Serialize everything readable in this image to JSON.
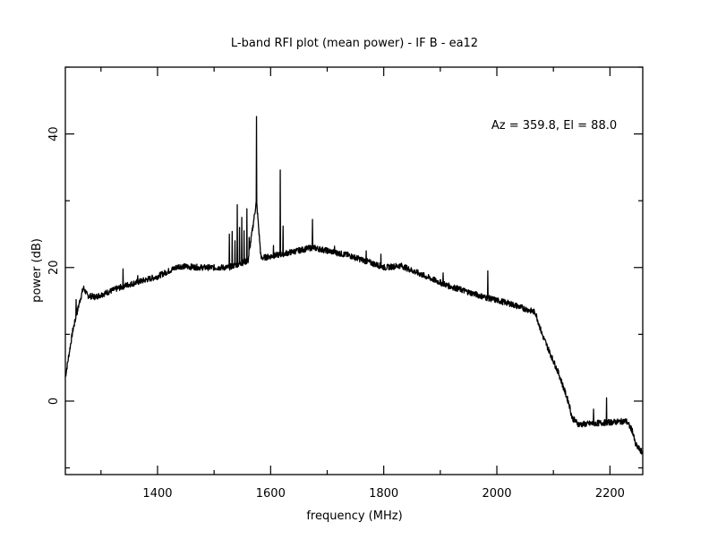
{
  "chart_data": {
    "type": "line",
    "title": "L-band RFI plot (mean power) - IF B - ea12",
    "xlabel": "frequency (MHz)",
    "ylabel": "power (dB)",
    "annotation": "Az = 359.8, El = 88.0",
    "xlim": [
      1237,
      2258
    ],
    "ylim": [
      -11,
      50
    ],
    "x_ticks": [
      1400,
      1600,
      1800,
      2000,
      2200
    ],
    "x_tick_labels": [
      "1400",
      "1600",
      "1800",
      "2000",
      "2200"
    ],
    "x_minor_step": 100,
    "y_ticks": [
      0,
      20,
      40
    ],
    "y_tick_labels": [
      "0",
      "20",
      "40"
    ],
    "y_minor_step": 10,
    "grid": false,
    "line_color": "#000000",
    "series": [
      {
        "name": "mean power",
        "baseline": [
          [
            1237,
            3.6
          ],
          [
            1250,
            10.5
          ],
          [
            1262,
            14.8
          ],
          [
            1269,
            17.0
          ],
          [
            1276,
            15.8
          ],
          [
            1290,
            15.6
          ],
          [
            1343,
            17.3
          ],
          [
            1398,
            18.6
          ],
          [
            1438,
            20.2
          ],
          [
            1480,
            20.0
          ],
          [
            1525,
            20.0
          ],
          [
            1560,
            21.0
          ],
          [
            1575,
            30.0
          ],
          [
            1583,
            21.4
          ],
          [
            1620,
            22.0
          ],
          [
            1674,
            23.0
          ],
          [
            1739,
            21.8
          ],
          [
            1802,
            20.0
          ],
          [
            1830,
            20.3
          ],
          [
            1865,
            19.0
          ],
          [
            1913,
            17.3
          ],
          [
            1981,
            15.5
          ],
          [
            2023,
            14.6
          ],
          [
            2068,
            13.3
          ],
          [
            2080,
            10.0
          ],
          [
            2110,
            4.0
          ],
          [
            2128,
            -0.5
          ],
          [
            2133,
            -2.5
          ],
          [
            2145,
            -3.5
          ],
          [
            2229,
            -3.0
          ],
          [
            2240,
            -4.5
          ],
          [
            2245,
            -6.5
          ],
          [
            2258,
            -7.8
          ]
        ],
        "spikes": [
          [
            1256,
            15.2
          ],
          [
            1339,
            19.8
          ],
          [
            1365,
            18.8
          ],
          [
            1527,
            25.0
          ],
          [
            1532,
            25.4
          ],
          [
            1537,
            24.0
          ],
          [
            1541,
            29.4
          ],
          [
            1545,
            26.0
          ],
          [
            1549,
            27.5
          ],
          [
            1553,
            25.5
          ],
          [
            1558,
            28.8
          ],
          [
            1562,
            24.5
          ],
          [
            1575,
            42.6
          ],
          [
            1605,
            23.3
          ],
          [
            1617,
            34.6
          ],
          [
            1622,
            26.2
          ],
          [
            1674,
            27.2
          ],
          [
            1713,
            23.2
          ],
          [
            1769,
            22.5
          ],
          [
            1795,
            22.0
          ],
          [
            1905,
            19.2
          ],
          [
            1984,
            19.5
          ],
          [
            2171,
            -1.2
          ],
          [
            2194,
            0.5
          ]
        ]
      }
    ]
  }
}
